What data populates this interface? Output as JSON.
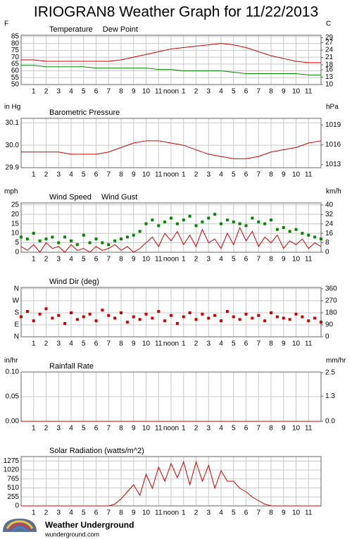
{
  "title": "IRIOGRAN8 Weather Graph for 11/22/2013",
  "footer": {
    "brand": "Weather Underground",
    "site": "wunderground.com"
  },
  "chart_data": [
    {
      "type": "line",
      "ylabel": "F",
      "y2label": "C",
      "xlim": [
        0,
        24
      ],
      "ylim": [
        50,
        86
      ],
      "y2lim": [
        10,
        30
      ],
      "xticks": [
        1,
        2,
        3,
        4,
        5,
        6,
        7,
        8,
        9,
        10,
        11,
        {
          "value": 12,
          "label": "noon"
        },
        {
          "value": 13,
          "label": "1"
        },
        {
          "value": 14,
          "label": "2"
        },
        {
          "value": 15,
          "label": "3"
        },
        {
          "value": 16,
          "label": "4"
        },
        {
          "value": 17,
          "label": "5"
        },
        {
          "value": 18,
          "label": "6"
        },
        {
          "value": 19,
          "label": "7"
        },
        {
          "value": 20,
          "label": "8"
        },
        {
          "value": 21,
          "label": "9"
        },
        {
          "value": 22,
          "label": "10"
        },
        {
          "value": 23,
          "label": "11"
        }
      ],
      "yticks": [
        50,
        55,
        60,
        65,
        70,
        75,
        80,
        85
      ],
      "y2ticks": [
        10,
        13,
        16,
        18,
        21,
        24,
        27,
        29
      ],
      "grid": true,
      "x": [
        0,
        1,
        2,
        3,
        4,
        5,
        6,
        7,
        8,
        9,
        10,
        11,
        12,
        13,
        14,
        15,
        16,
        17,
        18,
        19,
        20,
        21,
        22,
        23,
        24
      ],
      "series": [
        {
          "name": "Temperature",
          "color": "#cc0000",
          "mode": "line",
          "values": [
            68,
            68,
            67,
            67,
            67,
            67,
            67,
            67,
            68,
            70,
            72,
            74,
            76,
            77,
            78,
            79,
            80,
            79,
            77,
            74,
            71,
            69,
            67,
            66,
            66
          ]
        },
        {
          "name": "Dew Point",
          "color": "#008800",
          "mode": "line",
          "values": [
            64,
            64,
            63,
            63,
            63,
            63,
            62,
            62,
            62,
            62,
            62,
            61,
            61,
            60,
            60,
            60,
            60,
            59,
            58,
            58,
            58,
            58,
            58,
            57,
            57
          ]
        }
      ]
    },
    {
      "type": "line",
      "ylabel": "in Hg",
      "y2label": "hPa",
      "xlim": [
        0,
        24
      ],
      "ylim": [
        29.9,
        30.12
      ],
      "y2lim": [
        1012.5,
        1020
      ],
      "xticks": [
        1,
        2,
        3,
        4,
        5,
        6,
        7,
        8,
        9,
        10,
        11,
        {
          "value": 12,
          "label": "noon"
        },
        {
          "value": 13,
          "label": "1"
        },
        {
          "value": 14,
          "label": "2"
        },
        {
          "value": 15,
          "label": "3"
        },
        {
          "value": 16,
          "label": "4"
        },
        {
          "value": 17,
          "label": "5"
        },
        {
          "value": 18,
          "label": "6"
        },
        {
          "value": 19,
          "label": "7"
        },
        {
          "value": 20,
          "label": "8"
        },
        {
          "value": 21,
          "label": "9"
        },
        {
          "value": 22,
          "label": "10"
        },
        {
          "value": 23,
          "label": "11"
        }
      ],
      "yticks": [
        29.9,
        {
          "value": 30,
          "label": "30.0"
        },
        30.1
      ],
      "y2ticks": [
        1013,
        1016,
        1019
      ],
      "grid": true,
      "x": [
        0,
        1,
        2,
        3,
        4,
        5,
        6,
        7,
        8,
        9,
        10,
        11,
        12,
        13,
        14,
        15,
        16,
        17,
        18,
        19,
        20,
        21,
        22,
        23,
        24
      ],
      "series": [
        {
          "name": "Barometric Pressure",
          "color": "#cc0000",
          "mode": "line",
          "values": [
            29.97,
            29.97,
            29.97,
            29.97,
            29.96,
            29.96,
            29.96,
            29.97,
            29.99,
            30.01,
            30.02,
            30.02,
            30.01,
            30.0,
            29.98,
            29.96,
            29.95,
            29.94,
            29.94,
            29.95,
            29.97,
            29.98,
            29.99,
            30.01,
            30.02
          ]
        }
      ]
    },
    {
      "type": "line",
      "ylabel": "mph",
      "y2label": "km/h",
      "xlim": [
        0,
        24
      ],
      "ylim": [
        0,
        26
      ],
      "y2lim": [
        0,
        41.8
      ],
      "xticks": [
        1,
        2,
        3,
        4,
        5,
        6,
        7,
        8,
        9,
        10,
        11,
        {
          "value": 12,
          "label": "noon"
        },
        {
          "value": 13,
          "label": "1"
        },
        {
          "value": 14,
          "label": "2"
        },
        {
          "value": 15,
          "label": "3"
        },
        {
          "value": 16,
          "label": "4"
        },
        {
          "value": 17,
          "label": "5"
        },
        {
          "value": 18,
          "label": "6"
        },
        {
          "value": 19,
          "label": "7"
        },
        {
          "value": 20,
          "label": "8"
        },
        {
          "value": 21,
          "label": "9"
        },
        {
          "value": 22,
          "label": "10"
        },
        {
          "value": 23,
          "label": "11"
        }
      ],
      "yticks": [
        0,
        5,
        10,
        15,
        20,
        25
      ],
      "y2ticks": [
        0,
        8,
        16,
        24,
        32,
        40
      ],
      "grid": true,
      "x": [
        0,
        0.5,
        1,
        1.5,
        2,
        2.5,
        3,
        3.5,
        4,
        4.5,
        5,
        5.5,
        6,
        6.5,
        7,
        7.5,
        8,
        8.5,
        9,
        9.5,
        10,
        10.5,
        11,
        11.5,
        12,
        12.5,
        13,
        13.5,
        14,
        14.5,
        15,
        15.5,
        16,
        16.5,
        17,
        17.5,
        18,
        18.5,
        19,
        19.5,
        20,
        20.5,
        21,
        21.5,
        22,
        22.5,
        23,
        23.5,
        24
      ],
      "series": [
        {
          "name": "Wind Speed",
          "color": "#cc0000",
          "mode": "line",
          "values": [
            3,
            1,
            4,
            0,
            5,
            2,
            3,
            0,
            4,
            1,
            2,
            0,
            3,
            1,
            2,
            4,
            1,
            3,
            0,
            2,
            5,
            8,
            3,
            10,
            6,
            11,
            4,
            9,
            3,
            12,
            5,
            7,
            2,
            10,
            4,
            13,
            6,
            11,
            3,
            8,
            5,
            9,
            2,
            6,
            4,
            7,
            2,
            5,
            3
          ]
        },
        {
          "name": "Wind Gust",
          "color": "#008800",
          "mode": "markers",
          "values": [
            8,
            7,
            10,
            6,
            7,
            8,
            5,
            8,
            6,
            4,
            9,
            5,
            7,
            5,
            4,
            6,
            7,
            8,
            9,
            11,
            15,
            17,
            14,
            16,
            18,
            15,
            17,
            19,
            14,
            16,
            18,
            20,
            15,
            17,
            16,
            15,
            14,
            18,
            16,
            15,
            17,
            12,
            13,
            11,
            12,
            10,
            9,
            8,
            7
          ]
        }
      ]
    },
    {
      "type": "scatter",
      "xlim": [
        0,
        24
      ],
      "ylim": [
        0,
        370
      ],
      "y2lim": [
        0,
        370
      ],
      "xticks": [
        1,
        2,
        3,
        4,
        5,
        6,
        7,
        8,
        9,
        10,
        11,
        {
          "value": 12,
          "label": "noon"
        },
        {
          "value": 13,
          "label": "1"
        },
        {
          "value": 14,
          "label": "2"
        },
        {
          "value": 15,
          "label": "3"
        },
        {
          "value": 16,
          "label": "4"
        },
        {
          "value": 17,
          "label": "5"
        },
        {
          "value": 18,
          "label": "6"
        },
        {
          "value": 19,
          "label": "7"
        },
        {
          "value": 20,
          "label": "8"
        },
        {
          "value": 21,
          "label": "9"
        },
        {
          "value": 22,
          "label": "10"
        },
        {
          "value": 23,
          "label": "11"
        }
      ],
      "yticks": [
        {
          "value": 360,
          "label": "N"
        },
        {
          "value": 270,
          "label": "W"
        },
        {
          "value": 180,
          "label": "S"
        },
        {
          "value": 90,
          "label": "E"
        },
        {
          "value": 0,
          "label": "N"
        }
      ],
      "ytick_color": "#cc0000",
      "y2ticks": [
        0,
        90,
        180,
        270,
        360
      ],
      "grid": true,
      "x": [
        0,
        0.5,
        1,
        1.5,
        2,
        2.5,
        3,
        3.5,
        4,
        4.5,
        5,
        5.5,
        6,
        6.5,
        7,
        7.5,
        8,
        8.5,
        9,
        9.5,
        10,
        10.5,
        11,
        11.5,
        12,
        12.5,
        13,
        13.5,
        14,
        14.5,
        15,
        15.5,
        16,
        16.5,
        17,
        17.5,
        18,
        18.5,
        19,
        19.5,
        20,
        20.5,
        21,
        21.5,
        22,
        22.5,
        23,
        23.5,
        24
      ],
      "series": [
        {
          "name": "Wind Dir (deg)",
          "color": "#cc0000",
          "mode": "markers",
          "values": [
            150,
            190,
            120,
            170,
            210,
            140,
            160,
            100,
            180,
            130,
            150,
            170,
            120,
            200,
            160,
            140,
            180,
            110,
            150,
            130,
            170,
            140,
            190,
            120,
            160,
            100,
            150,
            180,
            130,
            170,
            140,
            160,
            120,
            190,
            150,
            130,
            170,
            140,
            160,
            120,
            180,
            150,
            140,
            130,
            170,
            150,
            120,
            140,
            110
          ]
        }
      ]
    },
    {
      "type": "line",
      "ylabel": "in/hr",
      "y2label": "mm/hr",
      "xlim": [
        0,
        24
      ],
      "ylim": [
        0,
        0.1
      ],
      "y2lim": [
        0,
        2.54
      ],
      "xticks": [
        1,
        2,
        3,
        4,
        5,
        6,
        7,
        8,
        9,
        10,
        11,
        {
          "value": 12,
          "label": "noon"
        },
        {
          "value": 13,
          "label": "1"
        },
        {
          "value": 14,
          "label": "2"
        },
        {
          "value": 15,
          "label": "3"
        },
        {
          "value": 16,
          "label": "4"
        },
        {
          "value": 17,
          "label": "5"
        },
        {
          "value": 18,
          "label": "6"
        },
        {
          "value": 19,
          "label": "7"
        },
        {
          "value": 20,
          "label": "8"
        },
        {
          "value": 21,
          "label": "9"
        },
        {
          "value": 22,
          "label": "10"
        },
        {
          "value": 23,
          "label": "11"
        }
      ],
      "yticks": [
        {
          "value": 0,
          "label": "0.00"
        },
        {
          "value": 0.05,
          "label": "0.05"
        },
        {
          "value": 0.1,
          "label": "0.10"
        }
      ],
      "y2ticks": [
        {
          "value": 0,
          "label": "0.0"
        },
        1.3,
        2.5
      ],
      "grid": true,
      "x": [
        0,
        1,
        2,
        3,
        4,
        5,
        6,
        7,
        8,
        9,
        10,
        11,
        12,
        13,
        14,
        15,
        16,
        17,
        18,
        19,
        20,
        21,
        22,
        23,
        24
      ],
      "series": [
        {
          "name": "Rainfall Rate",
          "color": "#cc0000",
          "mode": "line",
          "values": [
            0,
            0,
            0,
            0,
            0,
            0,
            0,
            0,
            0,
            0,
            0,
            0,
            0,
            0,
            0,
            0,
            0,
            0,
            0,
            0,
            0,
            0,
            0,
            0,
            0
          ]
        }
      ]
    },
    {
      "type": "line",
      "xlim": [
        0,
        24
      ],
      "ylim": [
        0,
        1400
      ],
      "xticks": [
        1,
        2,
        3,
        4,
        5,
        6,
        7,
        8,
        9,
        10,
        11,
        {
          "value": 12,
          "label": "noon"
        },
        {
          "value": 13,
          "label": "1"
        },
        {
          "value": 14,
          "label": "2"
        },
        {
          "value": 15,
          "label": "3"
        },
        {
          "value": 16,
          "label": "4"
        },
        {
          "value": 17,
          "label": "5"
        },
        {
          "value": 18,
          "label": "6"
        },
        {
          "value": 19,
          "label": "7"
        },
        {
          "value": 20,
          "label": "8"
        },
        {
          "value": 21,
          "label": "9"
        },
        {
          "value": 22,
          "label": "10"
        },
        {
          "value": 23,
          "label": "11"
        }
      ],
      "yticks": [
        0,
        255,
        510,
        765,
        1020,
        1275
      ],
      "grid": true,
      "x": [
        0,
        0.5,
        1,
        1.5,
        2,
        2.5,
        3,
        3.5,
        4,
        4.5,
        5,
        5.5,
        6,
        6.5,
        7,
        7.5,
        8,
        8.5,
        9,
        9.5,
        10,
        10.5,
        11,
        11.5,
        12,
        12.5,
        13,
        13.5,
        14,
        14.5,
        15,
        15.5,
        16,
        16.5,
        17,
        17.5,
        18,
        18.5,
        19,
        19.5,
        20,
        20.5,
        21,
        21.5,
        22,
        22.5,
        23,
        23.5,
        24
      ],
      "series": [
        {
          "name": "Solar Radiation (watts/m^2)",
          "color": "#cc0000",
          "mode": "line",
          "values": [
            0,
            0,
            0,
            0,
            0,
            0,
            0,
            0,
            0,
            0,
            0,
            0,
            0,
            0,
            0,
            50,
            200,
            400,
            600,
            300,
            900,
            500,
            1100,
            700,
            1200,
            800,
            1250,
            600,
            1250,
            700,
            1150,
            500,
            1000,
            700,
            700,
            500,
            400,
            250,
            150,
            50,
            0,
            0,
            0,
            0,
            0,
            0,
            0,
            0,
            0
          ]
        }
      ]
    }
  ]
}
